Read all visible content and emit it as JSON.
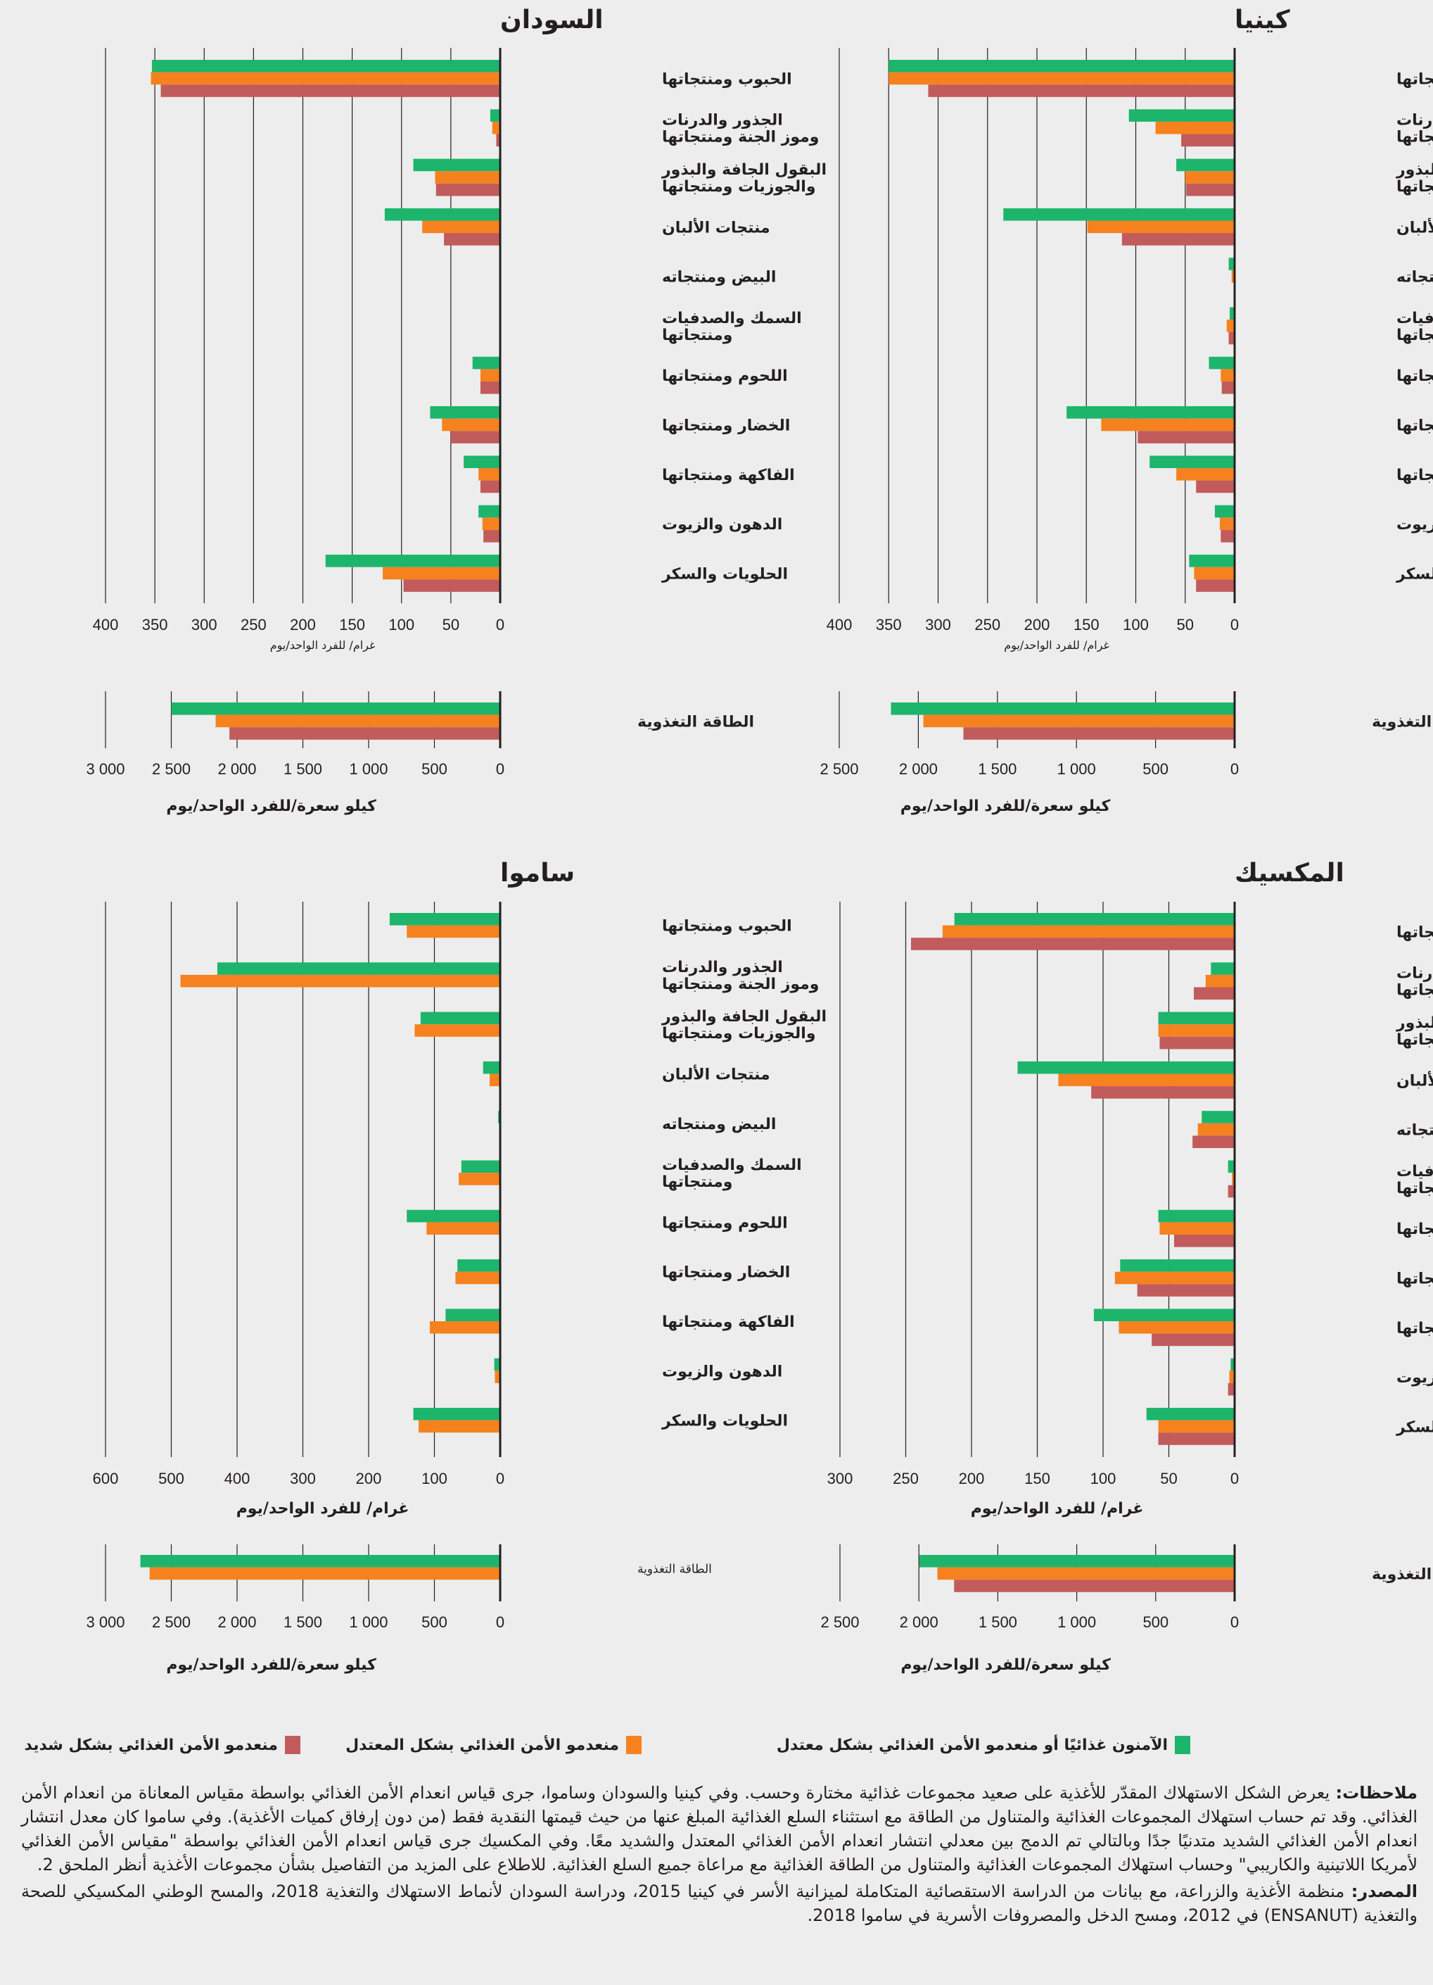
{
  "colors": {
    "food_secure_or_mild": "#1db56c",
    "moderate": "#f5821f",
    "severe": "#c25b5b",
    "axis": "#231f20",
    "grid": "#231f20",
    "background": "#ededed"
  },
  "legend": [
    {
      "label": "الآمنون غذائيًا أو منعدمو الأمن الغذائي بشكل معتدل",
      "color_key": "food_secure_or_mild"
    },
    {
      "label": "منعدمو الأمن الغذائي بشكل المعتدل",
      "color_key": "moderate"
    },
    {
      "label": "منعدمو الأمن الغذائي بشكل شديد",
      "color_key": "severe"
    }
  ],
  "chart_data": [
    {
      "type": "bar",
      "orientation": "horizontal",
      "title": "كينيا",
      "categories": [
        "الحبوب ومنتجاتها",
        "الجذور والدرنات\nوموز الجنة ومنتجاتها",
        "البقول الجافة والبذور\nوالجوزيات ومنتجاتها",
        "منتجات الألبان",
        "البيض ومنتجاته",
        "السمك والصدفيات\nومنتجاتها",
        "اللحوم ومنتجاتها",
        "الخضار ومنتجاتها",
        "الفاكهة ومنتجاتها",
        "الدهون والزيوت",
        "الحلويات والسكر"
      ],
      "series": [
        {
          "name": "الآمنون غذائيًا أو منعدمو الأمن الغذائي بشكل معتدل",
          "color_key": "food_secure_or_mild",
          "values": [
            350,
            107,
            59,
            234,
            6,
            5,
            26,
            170,
            86,
            20,
            46
          ]
        },
        {
          "name": "منعدمو الأمن الغذائي بشكل المعتدل",
          "color_key": "moderate",
          "values": [
            350,
            80,
            50,
            149,
            3,
            8,
            14,
            135,
            59,
            15,
            41
          ]
        },
        {
          "name": "منعدمو الأمن الغذائي بشكل شديد",
          "color_key": "severe",
          "values": [
            310,
            54,
            49,
            114,
            1,
            6,
            13,
            98,
            39,
            14,
            39
          ]
        }
      ],
      "xlim": [
        0,
        400
      ],
      "xticks": [
        0,
        50,
        100,
        150,
        200,
        250,
        300,
        350,
        400
      ],
      "xtick_labels": [
        "0",
        "50",
        "100",
        "150",
        "200",
        "250",
        "300",
        "350",
        "400"
      ],
      "xlabel": "غرام/ للفرد الواحد/يوم",
      "grid": true,
      "energy": {
        "label": "الطاقة التغذوية",
        "values": [
          2173,
          1968,
          1715
        ],
        "xlim": [
          0,
          2500
        ],
        "xticks": [
          0,
          500,
          1000,
          1500,
          2000,
          2500
        ],
        "xtick_labels": [
          "0",
          "500",
          "1 000",
          "1 500",
          "2 000",
          "2 500"
        ],
        "xlabel": "كيلو سعرة/للفرد الواحد/يوم"
      }
    },
    {
      "type": "bar",
      "orientation": "horizontal",
      "title": "السودان",
      "categories": [
        "الحبوب ومنتجاتها",
        "الجذور والدرنات\nوموز الجنة ومنتجاتها",
        "البقول الجافة والبذور\nوالجوزيات ومنتجاتها",
        "منتجات الألبان",
        "البيض ومنتجاته",
        "السمك والصدفيات\nومنتجاتها",
        "اللحوم ومنتجاتها",
        "الخضار ومنتجاتها",
        "الفاكهة ومنتجاتها",
        "الدهون والزيوت",
        "الحلويات والسكر"
      ],
      "series": [
        {
          "name": "الآمنون غذائيًا أو منعدمو الأمن الغذائي بشكل معتدل",
          "color_key": "food_secure_or_mild",
          "values": [
            353,
            10,
            88,
            117,
            0,
            1,
            28,
            71,
            37,
            22,
            177
          ]
        },
        {
          "name": "منعدمو الأمن الغذائي بشكل المعتدل",
          "color_key": "moderate",
          "values": [
            354,
            8,
            66,
            79,
            0,
            1,
            20,
            59,
            22,
            18,
            119
          ]
        },
        {
          "name": "منعدمو الأمن الغذائي بشكل شديد",
          "color_key": "severe",
          "values": [
            344,
            4,
            65,
            57,
            0,
            1,
            20,
            50,
            20,
            17,
            98
          ]
        }
      ],
      "xlim": [
        0,
        400
      ],
      "xticks": [
        0,
        50,
        100,
        150,
        200,
        250,
        300,
        350,
        400
      ],
      "xtick_labels": [
        "0",
        "50",
        "100",
        "150",
        "200",
        "250",
        "300",
        "350",
        "400"
      ],
      "xlabel": "غرام/ للفرد الواحد/يوم",
      "grid": true,
      "energy": {
        "label": "الطاقة التغذوية",
        "values": [
          2500,
          2163,
          2058
        ],
        "xlim": [
          0,
          3000
        ],
        "xticks": [
          0,
          500,
          1000,
          1500,
          2000,
          2500,
          3000
        ],
        "xtick_labels": [
          "0",
          "500",
          "1 000",
          "1 500",
          "2 000",
          "2 500",
          "3 000"
        ],
        "xlabel": "كيلو سعرة/للفرد الواحد/يوم"
      }
    },
    {
      "type": "bar",
      "orientation": "horizontal",
      "title": "المكسيك",
      "categories": [
        "الحبوب ومنتجاتها",
        "الجذور والدرنات\nوموز الجنة ومنتجاتها",
        "البقول الجافة والبذور\nوالجوزيات ومنتجاتها",
        "منتجات الألبان",
        "البيض ومنتجاته",
        "السمك والصدفيات\nومنتجاتها",
        "اللحوم ومنتجاتها",
        "الخضار ومنتجاتها",
        "الفاكهة ومنتجاتها",
        "الدهون والزيوت",
        "الحلويات والسكر"
      ],
      "series": [
        {
          "name": "الآمنون غذائيًا أو منعدمو الأمن الغذائي بشكل معتدل",
          "color_key": "food_secure_or_mild",
          "values": [
            213,
            18,
            58,
            165,
            25,
            5,
            58,
            87,
            107,
            3,
            67
          ]
        },
        {
          "name": "منعدمو الأمن الغذائي بشكل المعتدل",
          "color_key": "moderate",
          "values": [
            222,
            22,
            58,
            134,
            28,
            2,
            57,
            91,
            88,
            4,
            58
          ]
        },
        {
          "name": "منعدمو الأمن الغذائي بشكل شديد",
          "color_key": "severe",
          "values": [
            246,
            31,
            57,
            109,
            32,
            5,
            46,
            74,
            63,
            5,
            58
          ]
        }
      ],
      "xlim": [
        0,
        300
      ],
      "xticks": [
        0,
        50,
        100,
        150,
        200,
        250,
        300
      ],
      "xtick_labels": [
        "0",
        "50",
        "100",
        "150",
        "200",
        "250",
        "300"
      ],
      "xlabel": "غرام/ للفرد الواحد/يوم",
      "grid": true,
      "energy": {
        "label": "الطاقة التغذوية",
        "values": [
          1997,
          1883,
          1777
        ],
        "xlim": [
          0,
          2500
        ],
        "xticks": [
          0,
          500,
          1000,
          1500,
          2000,
          2500
        ],
        "xtick_labels": [
          "0",
          "500",
          "1 000",
          "1 500",
          "2 000",
          "2 500"
        ],
        "xlabel": "كيلو سعرة/للفرد الواحد/يوم"
      }
    },
    {
      "type": "bar",
      "orientation": "horizontal",
      "title": "ساموا",
      "categories": [
        "الحبوب ومنتجاتها",
        "الجذور والدرنات\nوموز الجنة ومنتجاتها",
        "البقول الجافة والبذور\nوالجوزيات ومنتجاتها",
        "منتجات الألبان",
        "البيض ومنتجاته",
        "السمك والصدفيات\nومنتجاتها",
        "اللحوم ومنتجاتها",
        "الخضار ومنتجاتها",
        "الفاكهة ومنتجاتها",
        "الدهون والزيوت",
        "الحلويات والسكر"
      ],
      "series": [
        {
          "name": "الآمنون غذائيًا أو منعدمو الأمن الغذائي بشكل معتدل",
          "color_key": "food_secure_or_mild",
          "values": [
            168,
            430,
            121,
            26,
            3,
            59,
            142,
            65,
            83,
            9,
            132
          ]
        },
        {
          "name": "منعدمو الأمن الغذائي بشكل المعتدل",
          "color_key": "moderate",
          "values": [
            142,
            486,
            130,
            16,
            1,
            63,
            112,
            68,
            107,
            8,
            124
          ]
        }
      ],
      "xlim": [
        0,
        600
      ],
      "xticks": [
        0,
        100,
        200,
        300,
        400,
        500,
        600
      ],
      "xtick_labels": [
        "0",
        "100",
        "200",
        "300",
        "400",
        "500",
        "600"
      ],
      "xlabel": "غرام/ للفرد الواحد/يوم",
      "grid": true,
      "energy": {
        "label": "الطاقة التغذوية",
        "values": [
          2735,
          2665
        ],
        "xlim": [
          0,
          3000
        ],
        "xticks": [
          0,
          500,
          1000,
          1500,
          2000,
          2500,
          3000
        ],
        "xtick_labels": [
          "0",
          "500",
          "1 000",
          "1 500",
          "2 000",
          "2 500",
          "3 000"
        ],
        "xlabel": "كيلو سعرة/للفرد الواحد/يوم"
      }
    }
  ],
  "notes": {
    "notes_label": "ملاحظات:",
    "notes_text": " يعرض الشكل الاستهلاك المقدّر للأغذية على صعيد مجموعات غذائية مختارة وحسب. وفي كينيا والسودان وساموا، جرى قياس انعدام الأمن الغذائي بواسطة مقياس المعاناة من انعدام الأمن الغذائي. وقد تم حساب استهلاك المجموعات الغذائية والمتناول من الطاقة مع استثناء السلع الغذائية المبلغ عنها من حيث قيمتها النقدية فقط (من دون إرفاق كميات الأغذية). وفي ساموا كان معدل انتشار انعدام الأمن الغذائي الشديد متدنيًا جدًا وبالتالي تم الدمج بين معدلي انتشار انعدام الأمن الغذائي المعتدل والشديد معًا. وفي المكسيك جرى قياس انعدام الأمن الغذائي بواسطة \"مقياس الأمن الغذائي لأمريكا اللاتينية والكاريبي\" وحساب استهلاك المجموعات الغذائية والمتناول من الطاقة الغذائية مع مراعاة جميع السلع الغذائية. للاطلاع على المزيد من التفاصيل بشأن مجموعات الأغذية أنظر الملحق 2.",
    "source_label": "المصدر:",
    "source_text": " منظمة الأغذية والزراعة، مع بيانات من الدراسة الاستقصائية المتكاملة لميزانية الأسر في كينيا 2015، ودراسة السودان لأنماط الاستهلاك والتغذية 2018، والمسح الوطني المكسيكي للصحة والتغذية (ENSANUT) في 2012، ومسح الدخل والمصروفات الأسرية في ساموا 2018."
  }
}
